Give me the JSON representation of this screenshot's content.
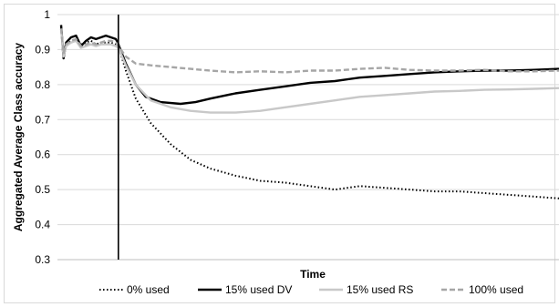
{
  "chart_data": {
    "type": "line",
    "xlabel": "Time",
    "ylabel": "Aggregated Average Class accuracy",
    "ylim": [
      0.3,
      1.0
    ],
    "yticks": [
      "0.3",
      "0.4",
      "0.5",
      "0.6",
      "0.7",
      "0.8",
      "0.9",
      "1"
    ],
    "xlim": [
      0,
      100
    ],
    "grid": true,
    "legend_position": "bottom",
    "annotations": [
      {
        "type": "vertical-line",
        "x": 11.5
      }
    ],
    "series": [
      {
        "name": "0% used",
        "style": "dotted",
        "color": "#000000",
        "x": [
          0,
          0.5,
          1,
          2,
          3,
          4,
          5,
          6,
          7,
          8,
          9,
          10,
          11,
          11.5,
          13,
          15,
          18,
          22,
          26,
          30,
          35,
          40,
          45,
          50,
          55,
          60,
          65,
          70,
          75,
          80,
          85,
          90,
          95,
          100
        ],
        "y": [
          0.97,
          0.88,
          0.91,
          0.925,
          0.93,
          0.915,
          0.92,
          0.925,
          0.915,
          0.92,
          0.92,
          0.92,
          0.915,
          0.91,
          0.84,
          0.76,
          0.69,
          0.63,
          0.585,
          0.56,
          0.54,
          0.525,
          0.52,
          0.51,
          0.5,
          0.51,
          0.505,
          0.5,
          0.495,
          0.495,
          0.49,
          0.485,
          0.48,
          0.475
        ]
      },
      {
        "name": "15% used DV",
        "style": "solid",
        "color": "#000000",
        "x": [
          0,
          0.5,
          1,
          2,
          3,
          4,
          5,
          6,
          7,
          8,
          9,
          10,
          11,
          11.5,
          13,
          15,
          17,
          20,
          24,
          27,
          30,
          35,
          40,
          45,
          50,
          55,
          60,
          65,
          70,
          75,
          80,
          85,
          90,
          95,
          100
        ],
        "y": [
          0.97,
          0.875,
          0.92,
          0.935,
          0.94,
          0.91,
          0.925,
          0.935,
          0.93,
          0.935,
          0.94,
          0.935,
          0.93,
          0.915,
          0.86,
          0.8,
          0.765,
          0.75,
          0.745,
          0.75,
          0.76,
          0.775,
          0.785,
          0.795,
          0.805,
          0.81,
          0.82,
          0.825,
          0.83,
          0.835,
          0.838,
          0.84,
          0.84,
          0.842,
          0.845
        ]
      },
      {
        "name": "15% used RS",
        "style": "solid",
        "color": "#c8c8c8",
        "x": [
          0,
          0.5,
          1,
          2,
          3,
          4,
          5,
          6,
          7,
          8,
          9,
          10,
          11,
          11.5,
          13,
          15,
          18,
          22,
          26,
          30,
          35,
          40,
          45,
          50,
          55,
          60,
          65,
          70,
          75,
          80,
          85,
          90,
          95,
          100
        ],
        "y": [
          0.96,
          0.88,
          0.91,
          0.92,
          0.925,
          0.905,
          0.91,
          0.915,
          0.91,
          0.915,
          0.915,
          0.915,
          0.91,
          0.905,
          0.855,
          0.8,
          0.755,
          0.735,
          0.725,
          0.72,
          0.72,
          0.725,
          0.735,
          0.745,
          0.755,
          0.765,
          0.77,
          0.775,
          0.78,
          0.782,
          0.785,
          0.786,
          0.788,
          0.79
        ]
      },
      {
        "name": "100% used",
        "style": "dashed",
        "color": "#a6a6a6",
        "x": [
          0,
          0.5,
          1,
          2,
          3,
          4,
          5,
          6,
          7,
          8,
          9,
          10,
          11,
          11.5,
          13,
          15,
          18,
          22,
          26,
          30,
          35,
          40,
          45,
          50,
          55,
          60,
          65,
          70,
          75,
          80,
          85,
          90,
          95,
          100
        ],
        "y": [
          0.96,
          0.89,
          0.915,
          0.925,
          0.93,
          0.91,
          0.915,
          0.92,
          0.915,
          0.92,
          0.925,
          0.925,
          0.92,
          0.91,
          0.88,
          0.86,
          0.855,
          0.85,
          0.845,
          0.84,
          0.835,
          0.838,
          0.835,
          0.84,
          0.84,
          0.845,
          0.848,
          0.842,
          0.84,
          0.84,
          0.842,
          0.838,
          0.838,
          0.84
        ]
      }
    ]
  }
}
